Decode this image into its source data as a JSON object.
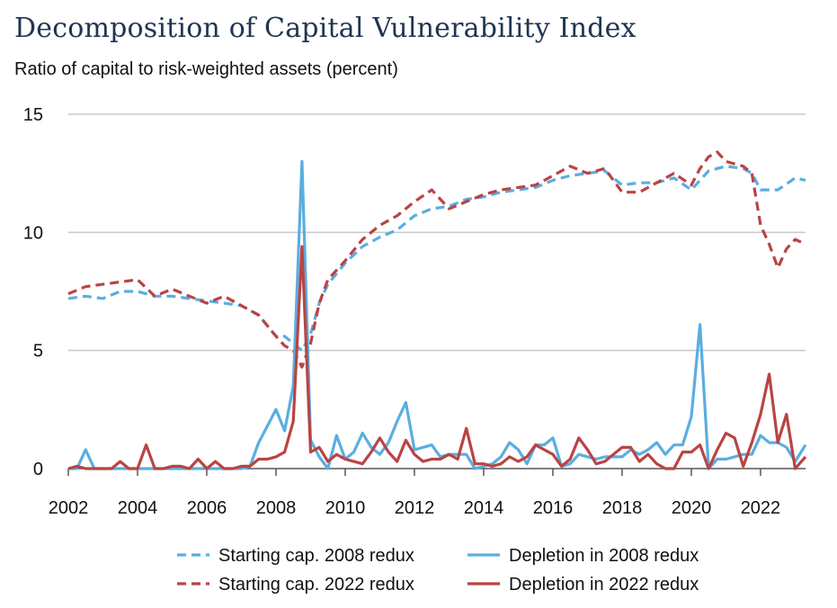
{
  "header": {
    "title": "Decomposition of Capital Vulnerability Index",
    "subtitle": "Ratio of capital to risk-weighted assets (percent)"
  },
  "chart_data": {
    "type": "line",
    "title": "Decomposition of Capital Vulnerability Index",
    "ylabel": "Ratio of capital to risk-weighted assets (percent)",
    "xlabel": "",
    "xlim": [
      2002,
      2023.3
    ],
    "ylim": [
      0,
      15
    ],
    "x_ticks": [
      "2002",
      "2004",
      "2006",
      "2008",
      "2010",
      "2012",
      "2014",
      "2016",
      "2018",
      "2020",
      "2022"
    ],
    "y_ticks": [
      "0",
      "5",
      "10",
      "15"
    ],
    "grid": true,
    "legend_position": "bottom",
    "colors": {
      "blue": "#5aaee0",
      "red": "#b94444",
      "grid": "#c8c8c8",
      "axis": "#555555"
    },
    "series": [
      {
        "name": "Starting cap. 2008 redux",
        "style": "dashed",
        "color": "#5aaee0",
        "x": [
          2002.0,
          2002.5,
          2003.0,
          2003.5,
          2004.0,
          2004.5,
          2005.0,
          2005.5,
          2006.0,
          2006.5,
          2007.0,
          2007.5,
          2008.0,
          2008.25,
          2008.5,
          2008.75,
          2009.0,
          2009.25,
          2009.5,
          2010.0,
          2010.5,
          2011.0,
          2011.5,
          2012.0,
          2012.5,
          2013.0,
          2013.5,
          2014.0,
          2014.5,
          2015.0,
          2015.5,
          2016.0,
          2016.5,
          2017.0,
          2017.5,
          2018.0,
          2018.5,
          2019.0,
          2019.5,
          2020.0,
          2020.25,
          2020.5,
          2021.0,
          2021.5,
          2021.75,
          2022.0,
          2022.5,
          2023.0,
          2023.3
        ],
        "values": [
          7.2,
          7.3,
          7.2,
          7.5,
          7.5,
          7.3,
          7.3,
          7.2,
          7.1,
          7.0,
          6.9,
          6.5,
          5.6,
          5.6,
          5.3,
          5.0,
          5.7,
          7.0,
          7.8,
          8.7,
          9.4,
          9.8,
          10.1,
          10.7,
          11.0,
          11.1,
          11.4,
          11.5,
          11.7,
          11.8,
          11.9,
          12.2,
          12.4,
          12.5,
          12.6,
          12.0,
          12.1,
          12.1,
          12.3,
          11.8,
          12.2,
          12.6,
          12.8,
          12.7,
          12.5,
          11.8,
          11.8,
          12.3,
          12.2
        ]
      },
      {
        "name": "Depletion in 2008 redux",
        "style": "solid",
        "color": "#5aaee0",
        "x": [
          2002.0,
          2002.25,
          2002.5,
          2002.75,
          2003.0,
          2003.5,
          2004.0,
          2004.5,
          2005.0,
          2005.5,
          2006.0,
          2006.5,
          2007.0,
          2007.25,
          2007.5,
          2007.75,
          2008.0,
          2008.25,
          2008.5,
          2008.75,
          2009.0,
          2009.25,
          2009.5,
          2009.75,
          2010.0,
          2010.25,
          2010.5,
          2010.75,
          2011.0,
          2011.25,
          2011.5,
          2011.75,
          2012.0,
          2012.25,
          2012.5,
          2012.75,
          2013.0,
          2013.25,
          2013.5,
          2013.75,
          2014.0,
          2014.25,
          2014.5,
          2014.75,
          2015.0,
          2015.25,
          2015.5,
          2015.75,
          2016.0,
          2016.25,
          2016.5,
          2016.75,
          2017.0,
          2017.25,
          2017.5,
          2017.75,
          2018.0,
          2018.25,
          2018.5,
          2018.75,
          2019.0,
          2019.25,
          2019.5,
          2019.75,
          2020.0,
          2020.25,
          2020.5,
          2020.75,
          2021.0,
          2021.25,
          2021.5,
          2021.75,
          2022.0,
          2022.25,
          2022.5,
          2022.75,
          2023.0,
          2023.3
        ],
        "values": [
          0.0,
          0.0,
          0.8,
          0.0,
          0.0,
          0.0,
          0.0,
          0.0,
          0.0,
          0.0,
          0.0,
          0.0,
          0.0,
          0.1,
          1.1,
          1.8,
          2.5,
          1.6,
          3.5,
          13.0,
          1.2,
          0.5,
          0.0,
          1.4,
          0.4,
          0.7,
          1.5,
          0.9,
          0.6,
          1.1,
          2.0,
          2.8,
          0.8,
          0.9,
          1.0,
          0.5,
          0.6,
          0.6,
          0.6,
          0.0,
          0.1,
          0.2,
          0.5,
          1.1,
          0.8,
          0.2,
          1.0,
          1.0,
          1.3,
          0.1,
          0.2,
          0.6,
          0.5,
          0.4,
          0.5,
          0.5,
          0.5,
          0.8,
          0.6,
          0.8,
          1.1,
          0.6,
          1.0,
          1.0,
          2.2,
          6.1,
          0.0,
          0.4,
          0.4,
          0.5,
          0.6,
          0.6,
          1.4,
          1.1,
          1.1,
          0.9,
          0.3,
          1.0
        ]
      },
      {
        "name": "Starting cap. 2022 redux",
        "style": "dashed",
        "color": "#b94444",
        "x": [
          2002.0,
          2002.5,
          2003.0,
          2003.5,
          2004.0,
          2004.5,
          2005.0,
          2005.5,
          2006.0,
          2006.5,
          2007.0,
          2007.5,
          2008.0,
          2008.25,
          2008.5,
          2008.75,
          2009.0,
          2009.25,
          2009.5,
          2010.0,
          2010.5,
          2011.0,
          2011.5,
          2012.0,
          2012.5,
          2013.0,
          2013.5,
          2014.0,
          2014.5,
          2015.0,
          2015.5,
          2016.0,
          2016.5,
          2017.0,
          2017.5,
          2018.0,
          2018.5,
          2019.0,
          2019.5,
          2020.0,
          2020.25,
          2020.5,
          2020.75,
          2021.0,
          2021.5,
          2021.75,
          2022.0,
          2022.25,
          2022.5,
          2022.75,
          2023.0,
          2023.3
        ],
        "values": [
          7.4,
          7.7,
          7.8,
          7.9,
          8.0,
          7.3,
          7.6,
          7.3,
          7.0,
          7.3,
          6.9,
          6.5,
          5.6,
          5.2,
          5.0,
          4.3,
          5.3,
          7.0,
          8.0,
          8.8,
          9.7,
          10.3,
          10.7,
          11.3,
          11.8,
          11.0,
          11.3,
          11.6,
          11.8,
          11.9,
          12.0,
          12.4,
          12.8,
          12.5,
          12.7,
          11.7,
          11.7,
          12.1,
          12.5,
          12.0,
          12.7,
          13.2,
          13.4,
          13.0,
          12.8,
          12.5,
          10.3,
          9.5,
          8.5,
          9.3,
          9.7,
          9.5
        ]
      },
      {
        "name": "Depletion in 2022 redux",
        "style": "solid",
        "color": "#b94444",
        "x": [
          2002.0,
          2002.25,
          2002.5,
          2002.75,
          2003.0,
          2003.25,
          2003.5,
          2003.75,
          2004.0,
          2004.25,
          2004.5,
          2004.75,
          2005.0,
          2005.25,
          2005.5,
          2005.75,
          2006.0,
          2006.25,
          2006.5,
          2006.75,
          2007.0,
          2007.25,
          2007.5,
          2007.75,
          2008.0,
          2008.25,
          2008.5,
          2008.75,
          2009.0,
          2009.25,
          2009.5,
          2009.75,
          2010.0,
          2010.25,
          2010.5,
          2010.75,
          2011.0,
          2011.25,
          2011.5,
          2011.75,
          2012.0,
          2012.25,
          2012.5,
          2012.75,
          2013.0,
          2013.25,
          2013.5,
          2013.75,
          2014.0,
          2014.25,
          2014.5,
          2014.75,
          2015.0,
          2015.25,
          2015.5,
          2015.75,
          2016.0,
          2016.25,
          2016.5,
          2016.75,
          2017.0,
          2017.25,
          2017.5,
          2017.75,
          2018.0,
          2018.25,
          2018.5,
          2018.75,
          2019.0,
          2019.25,
          2019.5,
          2019.75,
          2020.0,
          2020.25,
          2020.5,
          2020.75,
          2021.0,
          2021.25,
          2021.5,
          2021.75,
          2022.0,
          2022.25,
          2022.5,
          2022.75,
          2023.0,
          2023.3
        ],
        "values": [
          0.0,
          0.1,
          0.0,
          0.0,
          0.0,
          0.0,
          0.3,
          0.0,
          0.0,
          1.0,
          0.0,
          0.0,
          0.1,
          0.1,
          0.0,
          0.4,
          0.0,
          0.3,
          0.0,
          0.0,
          0.1,
          0.1,
          0.4,
          0.4,
          0.5,
          0.7,
          2.0,
          9.4,
          0.7,
          0.9,
          0.3,
          0.6,
          0.4,
          0.3,
          0.2,
          0.7,
          1.3,
          0.7,
          0.3,
          1.2,
          0.6,
          0.3,
          0.4,
          0.4,
          0.6,
          0.4,
          1.7,
          0.2,
          0.2,
          0.1,
          0.2,
          0.5,
          0.3,
          0.5,
          1.0,
          0.8,
          0.6,
          0.1,
          0.4,
          1.3,
          0.8,
          0.2,
          0.3,
          0.6,
          0.9,
          0.9,
          0.3,
          0.6,
          0.2,
          0.0,
          0.0,
          0.7,
          0.7,
          1.0,
          0.0,
          0.8,
          1.5,
          1.3,
          0.1,
          1.1,
          2.3,
          4.0,
          1.1,
          2.3,
          0.0,
          0.5
        ]
      }
    ]
  }
}
